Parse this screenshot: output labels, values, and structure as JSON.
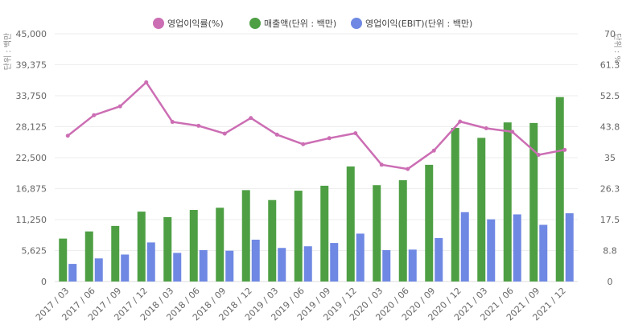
{
  "chart_data": {
    "type": "bar",
    "legend_position": "top-center",
    "grid": true,
    "colors": {
      "margin": "#cc6eb4",
      "sales": "#4e9f44",
      "ebit": "#6f88e3",
      "grid": "#eeeeee",
      "axis": "#dddddd"
    },
    "categories": [
      "2017 / 03",
      "2017 / 06",
      "2017 / 09",
      "2017 / 12",
      "2018 / 03",
      "2018 / 06",
      "2018 / 09",
      "2018 / 12",
      "2019 / 03",
      "2019 / 06",
      "2019 / 09",
      "2019 / 12",
      "2020 / 03",
      "2020 / 06",
      "2020 / 09",
      "2020 / 12",
      "2021 / 03",
      "2021 / 06",
      "2021 / 09",
      "2021 / 12"
    ],
    "series": [
      {
        "key": "margin",
        "name": "영업이익률(%)",
        "type": "line",
        "axis": "right",
        "values": [
          41.2,
          47.0,
          49.5,
          56.3,
          45.1,
          44.0,
          41.8,
          46.2,
          41.5,
          38.8,
          40.5,
          41.9,
          33.0,
          31.8,
          37.0,
          45.2,
          43.3,
          42.3,
          35.8,
          37.2
        ]
      },
      {
        "key": "sales",
        "name": "매출액(단위 : 백만)",
        "type": "bar",
        "axis": "left",
        "values": [
          7800,
          9100,
          10100,
          12700,
          11700,
          13000,
          13400,
          16600,
          14800,
          16500,
          17400,
          20900,
          17500,
          18400,
          21200,
          27900,
          26100,
          28900,
          28800,
          33500
        ]
      },
      {
        "key": "ebit",
        "name": "영업이익(EBIT)(단위 : 백만)",
        "type": "bar",
        "axis": "left",
        "values": [
          3200,
          4200,
          4900,
          7100,
          5200,
          5700,
          5600,
          7600,
          6100,
          6400,
          7000,
          8700,
          5700,
          5800,
          7900,
          12600,
          11300,
          12200,
          10300,
          12400
        ]
      }
    ],
    "left_axis": {
      "title": "단위 : 백만",
      "min": 0,
      "max": 45000,
      "tick_labels": [
        "0",
        "5,625",
        "11,250",
        "16,875",
        "22,500",
        "28,125",
        "33,750",
        "39,375",
        "45,000"
      ]
    },
    "right_axis": {
      "title": "단위 : %",
      "min": 0,
      "max": 70,
      "tick_labels": [
        "0",
        "8.8",
        "17.5",
        "26.3",
        "35",
        "43.8",
        "52.5",
        "61.3",
        "70"
      ]
    }
  }
}
